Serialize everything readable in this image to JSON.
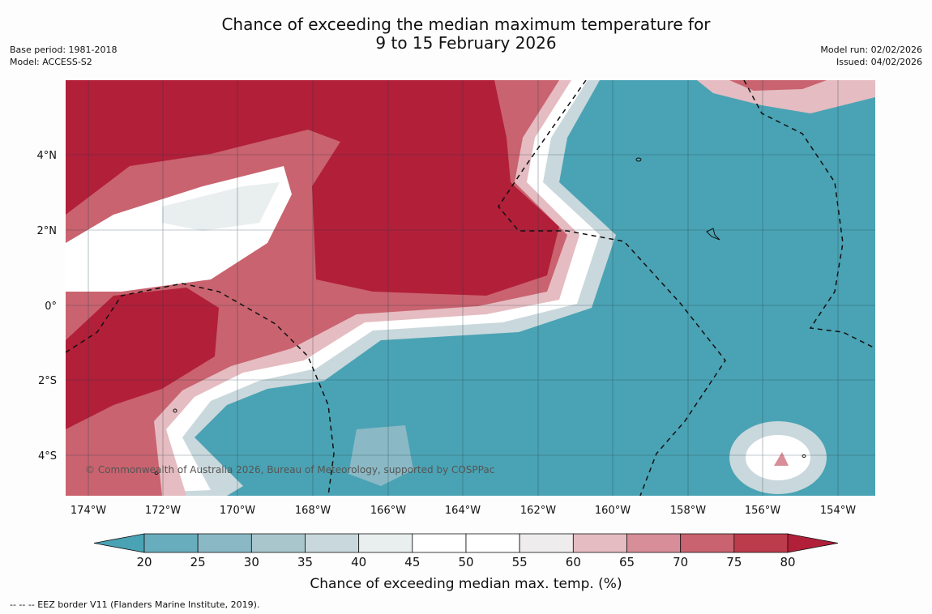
{
  "title_line1": "Chance of exceeding the median maximum temperature for",
  "title_line2": "9 to 15 February 2026",
  "meta_left": [
    "Base period: 1981-2018",
    "Model: ACCESS-S2"
  ],
  "meta_right": [
    "Model run: 02/02/2026",
    "Issued: 04/02/2026"
  ],
  "credit": "© Commonwealth of Australia 2026, Bureau of Meteorology, supported by COSPPac",
  "x_ticks": [
    "174°W",
    "172°W",
    "170°W",
    "168°W",
    "166°W",
    "164°W",
    "162°W",
    "160°W",
    "158°W",
    "156°W",
    "154°W"
  ],
  "y_ticks": [
    "4°N",
    "2°N",
    "0°",
    "2°S",
    "4°S"
  ],
  "colorbar": {
    "ticks": [
      "20",
      "25",
      "30",
      "35",
      "40",
      "45",
      "50",
      "55",
      "60",
      "65",
      "70",
      "75",
      "80"
    ],
    "colors": [
      "#4aa3b4",
      "#68adbd",
      "#8ab9c5",
      "#a9c6cd",
      "#c9d8dc",
      "#e9eeef",
      "#ffffff",
      "#ffffff",
      "#eeecec",
      "#e5bcc1",
      "#d88e98",
      "#c9636f",
      "#bc3c4c",
      "#b21f39"
    ],
    "label": "Chance of exceeding median max. temp. (%)"
  },
  "colors": {
    "cold": "#4aa3b4",
    "warm": "#b21f39"
  },
  "footnote": "--  --  -- EEZ border V11 (Flanders Marine Institute, 2019)."
}
